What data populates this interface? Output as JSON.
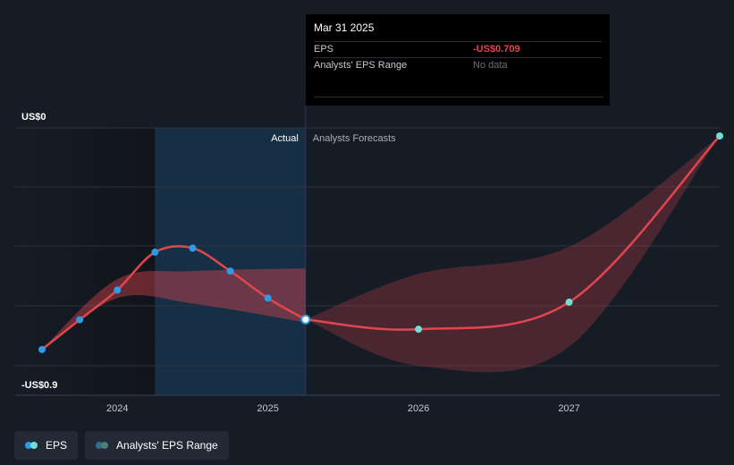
{
  "chart_data": {
    "type": "line",
    "y_axis": {
      "top_label": "US$0",
      "bottom_label": "-US$0.9",
      "ylim": [
        -0.9,
        0
      ]
    },
    "x_axis": {
      "ticks": [
        "2024",
        "2025",
        "2026",
        "2027"
      ],
      "tick_values": [
        2024.0,
        2025.0,
        2026.0,
        2027.0
      ],
      "xlim": [
        2023.5,
        2028.0
      ]
    },
    "section_labels": {
      "actual": "Actual",
      "forecast": "Analysts Forecasts"
    },
    "divider_x": 2025.25,
    "highlight_start_x": 2024.25,
    "series": [
      {
        "name": "EPS",
        "color": "#e0464e",
        "actual": [
          {
            "x": 2023.5,
            "y": -0.82
          },
          {
            "x": 2023.75,
            "y": -0.71
          },
          {
            "x": 2024.0,
            "y": -0.6
          },
          {
            "x": 2024.25,
            "y": -0.46
          },
          {
            "x": 2024.5,
            "y": -0.445
          },
          {
            "x": 2024.75,
            "y": -0.53
          },
          {
            "x": 2025.0,
            "y": -0.63
          },
          {
            "x": 2025.25,
            "y": -0.709
          }
        ],
        "forecast": [
          {
            "x": 2025.25,
            "y": -0.709
          },
          {
            "x": 2026.0,
            "y": -0.745
          },
          {
            "x": 2027.0,
            "y": -0.645
          },
          {
            "x": 2028.0,
            "y": -0.03
          }
        ]
      },
      {
        "name": "Analysts' EPS Range",
        "color": "#e0464e",
        "actual_band": {
          "x": [
            2023.5,
            2024.0,
            2024.5,
            2025.25
          ],
          "high": [
            -0.82,
            -0.56,
            -0.53,
            -0.52
          ],
          "low": [
            -0.82,
            -0.63,
            -0.65,
            -0.72
          ]
        },
        "forecast_band": {
          "x": [
            2025.25,
            2026.0,
            2027.0,
            2028.0
          ],
          "high": [
            -0.709,
            -0.54,
            -0.44,
            -0.03
          ],
          "low": [
            -0.709,
            -0.88,
            -0.81,
            -0.03
          ]
        }
      }
    ]
  },
  "tooltip": {
    "date": "Mar 31 2025",
    "eps_label": "EPS",
    "eps_value": "-US$0.709",
    "range_label": "Analysts' EPS Range",
    "range_value": "No data"
  },
  "legend": {
    "eps_label": "EPS",
    "range_label": "Analysts' EPS Range",
    "eps_dot_colors": [
      "#2e9be6",
      "#6fe0d6"
    ],
    "range_dot_colors": [
      "#2d6e8e",
      "#4c7e74"
    ]
  },
  "colors": {
    "background": "#161c26",
    "actual_point": "#2e9be6",
    "forecast_point": "#6fe0d6",
    "highlight": "#16324a",
    "grid": "#2c333d"
  }
}
